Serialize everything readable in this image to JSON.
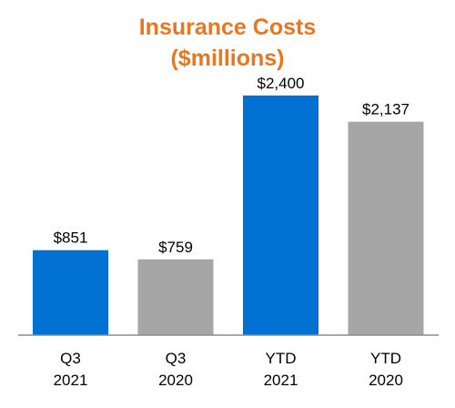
{
  "chart_data": {
    "type": "bar",
    "title": "Insurance Costs",
    "subtitle": "($millions)",
    "title_color": "#E87722",
    "categories": [
      [
        "Q3",
        "2021"
      ],
      [
        "Q3",
        "2020"
      ],
      [
        "YTD",
        "2021"
      ],
      [
        "YTD",
        "2020"
      ]
    ],
    "values": [
      851,
      759,
      2400,
      2137
    ],
    "value_labels": [
      "$851",
      "$759",
      "$2,400",
      "$2,137"
    ],
    "bar_colors": [
      "#0070D2",
      "#A6A6A6",
      "#0070D2",
      "#A6A6A6"
    ],
    "baseline_color": "#8C8C8C",
    "ylim": [
      0,
      2900
    ],
    "grid": false,
    "legend": "none"
  }
}
